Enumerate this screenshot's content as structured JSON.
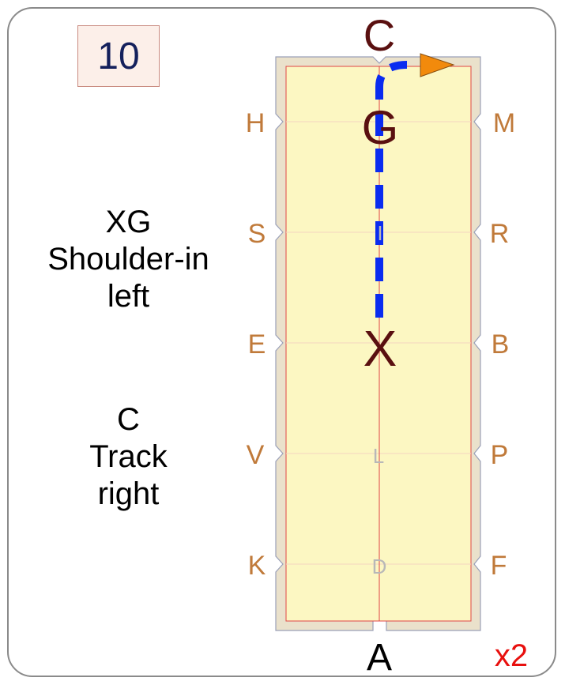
{
  "movement_number": "10",
  "multiplier": "x2",
  "instructions": [
    {
      "lines": [
        "XG",
        "Shoulder-in",
        "left"
      ]
    },
    {
      "lines": [
        "C",
        "Track",
        "right"
      ]
    }
  ],
  "arena_letters": {
    "top": "C",
    "bottom": "A",
    "left": [
      "H",
      "S",
      "E",
      "V",
      "K"
    ],
    "right": [
      "M",
      "R",
      "B",
      "P",
      "F"
    ],
    "centerline": [
      "G",
      "I",
      "X",
      "L",
      "D"
    ]
  },
  "colors": {
    "arena_fill": "#fcf7c2",
    "arena_border": "#eae1cb",
    "letter_tan": "#c07a3a",
    "centerline_dark": "#5a1010",
    "centerline_faint": "#b8b8b8",
    "path_blue": "#0a2cf0",
    "arrow_orange": "#f28a0c",
    "multiplier_red": "#e8100e",
    "number_navy": "#14205c"
  }
}
